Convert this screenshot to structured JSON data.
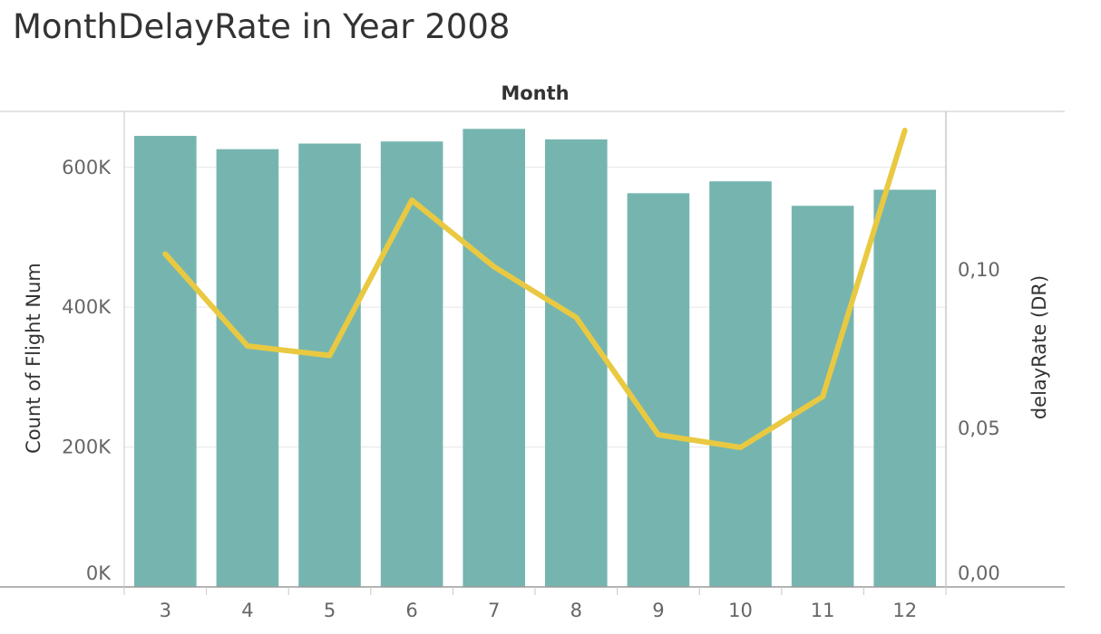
{
  "title": "MonthDelayRate in Year 2008",
  "colors": {
    "bar": "#76b5af",
    "line": "#e9c941",
    "grid": "#e6e6e6",
    "axis": "#c8c8c8"
  },
  "chart_data": {
    "type": "bar",
    "column_header": "Month",
    "categories": [
      "3",
      "4",
      "5",
      "6",
      "7",
      "8",
      "9",
      "10",
      "11",
      "12"
    ],
    "series": [
      {
        "type": "bar",
        "axis": "left",
        "values": [
          645000,
          626000,
          634000,
          637000,
          655000,
          640000,
          563000,
          580000,
          545000,
          568000
        ]
      },
      {
        "type": "line",
        "axis": "right",
        "values": [
          0.105,
          0.076,
          0.073,
          0.122,
          0.101,
          0.085,
          0.048,
          0.044,
          0.06,
          0.144
        ]
      }
    ],
    "y_left": {
      "label": "Count of Flight Num",
      "range": [
        0,
        680000
      ],
      "ticks": [
        0,
        200000,
        400000,
        600000
      ],
      "tick_labels": [
        "0K",
        "200K",
        "400K",
        "600K"
      ]
    },
    "y_right": {
      "label": "delayRate (DR)",
      "range": [
        0,
        0.15
      ],
      "ticks": [
        0,
        0.05,
        0.1
      ],
      "tick_labels": [
        "0,00",
        "0,05",
        "0,10"
      ]
    },
    "grid": true
  }
}
